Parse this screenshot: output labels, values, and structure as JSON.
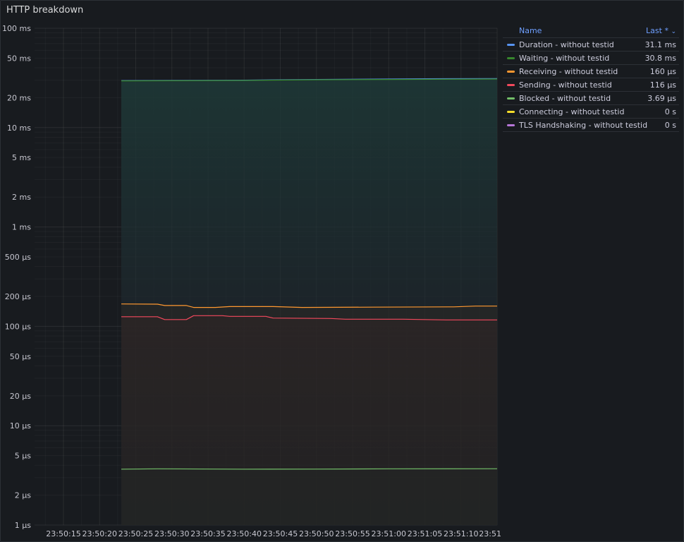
{
  "panel": {
    "title": "HTTP breakdown"
  },
  "legend": {
    "name_header": "Name",
    "value_header": "Last *",
    "sort_icon": "chevron-down-icon",
    "rows": [
      {
        "name": "Duration - without testid",
        "value": "31.1 ms",
        "color": "#5794f2"
      },
      {
        "name": "Waiting - without testid",
        "value": "30.8 ms",
        "color": "#37872d"
      },
      {
        "name": "Receiving - without testid",
        "value": "160 µs",
        "color": "#ff9830"
      },
      {
        "name": "Sending - without testid",
        "value": "116 µs",
        "color": "#f2495c"
      },
      {
        "name": "Blocked - without testid",
        "value": "3.69 µs",
        "color": "#73bf69"
      },
      {
        "name": "Connecting - without testid",
        "value": "0 s",
        "color": "#fade2a"
      },
      {
        "name": "TLS Handshaking - without testid",
        "value": "0 s",
        "color": "#b877d9"
      }
    ]
  },
  "chart_data": {
    "type": "line",
    "y_scale": "log",
    "y_unit": "seconds",
    "ylim": [
      1e-06,
      0.1
    ],
    "y_ticks": [
      {
        "value": 0.1,
        "label": "100 ms"
      },
      {
        "value": 0.05,
        "label": "50 ms"
      },
      {
        "value": 0.02,
        "label": "20 ms"
      },
      {
        "value": 0.01,
        "label": "10 ms"
      },
      {
        "value": 0.005,
        "label": "5 ms"
      },
      {
        "value": 0.002,
        "label": "2 ms"
      },
      {
        "value": 0.001,
        "label": "1 ms"
      },
      {
        "value": 0.0005,
        "label": "500 µs"
      },
      {
        "value": 0.0002,
        "label": "200 µs"
      },
      {
        "value": 0.0001,
        "label": "100 µs"
      },
      {
        "value": 5e-05,
        "label": "50 µs"
      },
      {
        "value": 2e-05,
        "label": "20 µs"
      },
      {
        "value": 1e-05,
        "label": "10 µs"
      },
      {
        "value": 5e-06,
        "label": "5 µs"
      },
      {
        "value": 2e-06,
        "label": "2 µs"
      },
      {
        "value": 1e-06,
        "label": "1 µs"
      }
    ],
    "x_ticks": [
      "23:50:15",
      "23:50:20",
      "23:50:25",
      "23:50:30",
      "23:50:35",
      "23:50:40",
      "23:50:45",
      "23:50:50",
      "23:50:55",
      "23:51:00",
      "23:51:05",
      "23:51:10",
      "23:51"
    ],
    "x_range": [
      "23:50:11",
      "23:51:15"
    ],
    "grid": true,
    "legend_position": "right",
    "series": [
      {
        "name": "Duration - without testid",
        "color": "#5794f2",
        "fill": false,
        "points": [
          [
            "23:50:23",
            0.0297
          ],
          [
            "23:50:30",
            0.0298
          ],
          [
            "23:50:40",
            0.03
          ],
          [
            "23:50:50",
            0.0305
          ],
          [
            "23:51:00",
            0.0308
          ],
          [
            "23:51:05",
            0.031
          ],
          [
            "23:51:15",
            0.0311
          ]
        ]
      },
      {
        "name": "Waiting - without testid",
        "color": "#37872d",
        "fill": true,
        "points": [
          [
            "23:50:23",
            0.0295
          ],
          [
            "23:50:30",
            0.0296
          ],
          [
            "23:50:40",
            0.0298
          ],
          [
            "23:50:50",
            0.0303
          ],
          [
            "23:51:00",
            0.0305
          ],
          [
            "23:51:15",
            0.0308
          ]
        ]
      },
      {
        "name": "Receiving - without testid",
        "color": "#ff9830",
        "fill": true,
        "points": [
          [
            "23:50:23",
            0.000168
          ],
          [
            "23:50:28",
            0.000167
          ],
          [
            "23:50:29",
            0.000162
          ],
          [
            "23:50:32",
            0.000162
          ],
          [
            "23:50:33",
            0.000155
          ],
          [
            "23:50:36",
            0.000155
          ],
          [
            "23:50:38",
            0.000158
          ],
          [
            "23:50:44",
            0.000158
          ],
          [
            "23:50:48",
            0.000155
          ],
          [
            "23:50:58",
            0.000156
          ],
          [
            "23:51:09",
            0.000157
          ],
          [
            "23:51:12",
            0.00016
          ],
          [
            "23:51:15",
            0.00016
          ]
        ]
      },
      {
        "name": "Sending - without testid",
        "color": "#f2495c",
        "fill": true,
        "points": [
          [
            "23:50:23",
            0.000125
          ],
          [
            "23:50:28",
            0.000125
          ],
          [
            "23:50:29",
            0.000117
          ],
          [
            "23:50:32",
            0.000117
          ],
          [
            "23:50:33",
            0.000128
          ],
          [
            "23:50:37",
            0.000128
          ],
          [
            "23:50:38",
            0.000126
          ],
          [
            "23:50:43",
            0.000126
          ],
          [
            "23:50:44",
            0.000121
          ],
          [
            "23:50:52",
            0.00012
          ],
          [
            "23:50:54",
            0.000118
          ],
          [
            "23:51:02",
            0.000118
          ],
          [
            "23:51:08",
            0.000116
          ],
          [
            "23:51:15",
            0.000116
          ]
        ]
      },
      {
        "name": "Blocked - without testid",
        "color": "#73bf69",
        "fill": true,
        "points": [
          [
            "23:50:23",
            3.65e-06
          ],
          [
            "23:50:28",
            3.68e-06
          ],
          [
            "23:50:40",
            3.65e-06
          ],
          [
            "23:50:50",
            3.66e-06
          ],
          [
            "23:51:00",
            3.68e-06
          ],
          [
            "23:51:15",
            3.69e-06
          ]
        ]
      }
    ]
  }
}
